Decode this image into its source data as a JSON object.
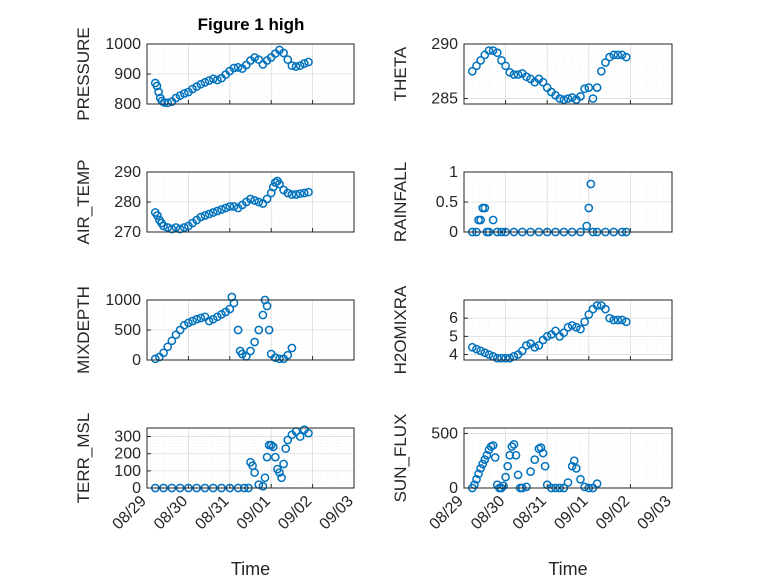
{
  "figure": {
    "title": "Figure 1 high"
  },
  "chart_data": [
    {
      "type": "scatter",
      "ylabel": "PRESSURE",
      "ylim": [
        800,
        1000
      ],
      "yticks": [
        800,
        900,
        1000
      ],
      "xlabel": "",
      "x_range": [
        "08/29",
        "09/03"
      ],
      "points": [
        [
          0.2,
          870
        ],
        [
          0.24,
          860
        ],
        [
          0.28,
          840
        ],
        [
          0.32,
          820
        ],
        [
          0.36,
          810
        ],
        [
          0.42,
          805
        ],
        [
          0.5,
          804
        ],
        [
          0.6,
          808
        ],
        [
          0.7,
          820
        ],
        [
          0.8,
          828
        ],
        [
          0.9,
          835
        ],
        [
          1.0,
          840
        ],
        [
          1.1,
          850
        ],
        [
          1.2,
          858
        ],
        [
          1.3,
          866
        ],
        [
          1.4,
          872
        ],
        [
          1.5,
          878
        ],
        [
          1.6,
          884
        ],
        [
          1.7,
          880
        ],
        [
          1.8,
          886
        ],
        [
          1.9,
          898
        ],
        [
          2.0,
          910
        ],
        [
          2.1,
          920
        ],
        [
          2.2,
          922
        ],
        [
          2.3,
          918
        ],
        [
          2.4,
          930
        ],
        [
          2.5,
          945
        ],
        [
          2.6,
          955
        ],
        [
          2.7,
          948
        ],
        [
          2.8,
          932
        ],
        [
          2.9,
          945
        ],
        [
          3.0,
          955
        ],
        [
          3.1,
          968
        ],
        [
          3.2,
          980
        ],
        [
          3.3,
          970
        ],
        [
          3.4,
          948
        ],
        [
          3.5,
          928
        ],
        [
          3.6,
          925
        ],
        [
          3.7,
          928
        ],
        [
          3.8,
          935
        ],
        [
          3.9,
          940
        ]
      ]
    },
    {
      "type": "scatter",
      "ylabel": "THETA",
      "ylim": [
        284.5,
        290
      ],
      "yticks": [
        285,
        290
      ],
      "xlabel": "",
      "x_range": [
        "08/29",
        "09/03"
      ],
      "points": [
        [
          0.2,
          287.5
        ],
        [
          0.3,
          288.0
        ],
        [
          0.4,
          288.5
        ],
        [
          0.5,
          289.0
        ],
        [
          0.6,
          289.4
        ],
        [
          0.7,
          289.4
        ],
        [
          0.8,
          289.2
        ],
        [
          0.9,
          288.5
        ],
        [
          1.0,
          288.0
        ],
        [
          1.1,
          287.4
        ],
        [
          1.2,
          287.2
        ],
        [
          1.3,
          287.2
        ],
        [
          1.4,
          287.3
        ],
        [
          1.5,
          287.0
        ],
        [
          1.6,
          286.8
        ],
        [
          1.7,
          286.5
        ],
        [
          1.8,
          286.8
        ],
        [
          1.9,
          286.5
        ],
        [
          2.0,
          286.0
        ],
        [
          2.1,
          285.6
        ],
        [
          2.2,
          285.3
        ],
        [
          2.3,
          285.0
        ],
        [
          2.4,
          284.9
        ],
        [
          2.5,
          285.0
        ],
        [
          2.6,
          285.1
        ],
        [
          2.7,
          284.9
        ],
        [
          2.8,
          285.2
        ],
        [
          2.9,
          285.9
        ],
        [
          3.0,
          286.0
        ],
        [
          3.1,
          285.0
        ],
        [
          3.2,
          286.0
        ],
        [
          3.3,
          287.5
        ],
        [
          3.4,
          288.3
        ],
        [
          3.5,
          288.8
        ],
        [
          3.6,
          289.0
        ],
        [
          3.7,
          289.0
        ],
        [
          3.8,
          289.0
        ],
        [
          3.9,
          288.8
        ]
      ]
    },
    {
      "type": "scatter",
      "ylabel": "AIR_TEMP",
      "ylim": [
        270,
        290
      ],
      "yticks": [
        270,
        280,
        290
      ],
      "xlabel": "",
      "x_range": [
        "08/29",
        "09/03"
      ],
      "points": [
        [
          0.2,
          276.5
        ],
        [
          0.25,
          275.5
        ],
        [
          0.3,
          274.0
        ],
        [
          0.35,
          273.0
        ],
        [
          0.4,
          272.0
        ],
        [
          0.5,
          271.5
        ],
        [
          0.6,
          271.0
        ],
        [
          0.7,
          271.5
        ],
        [
          0.8,
          271.0
        ],
        [
          0.9,
          271.5
        ],
        [
          1.0,
          272.0
        ],
        [
          1.1,
          273.0
        ],
        [
          1.2,
          274.0
        ],
        [
          1.3,
          275.0
        ],
        [
          1.4,
          275.5
        ],
        [
          1.5,
          276.0
        ],
        [
          1.6,
          276.5
        ],
        [
          1.7,
          277.0
        ],
        [
          1.8,
          277.5
        ],
        [
          1.9,
          278.0
        ],
        [
          2.0,
          278.5
        ],
        [
          2.1,
          278.5
        ],
        [
          2.2,
          278.0
        ],
        [
          2.3,
          279.0
        ],
        [
          2.4,
          280.0
        ],
        [
          2.5,
          281.0
        ],
        [
          2.6,
          280.5
        ],
        [
          2.7,
          280.0
        ],
        [
          2.8,
          279.5
        ],
        [
          2.9,
          281.0
        ],
        [
          3.0,
          283.0
        ],
        [
          3.05,
          285.0
        ],
        [
          3.1,
          286.5
        ],
        [
          3.15,
          287.0
        ],
        [
          3.2,
          286.0
        ],
        [
          3.3,
          284.0
        ],
        [
          3.4,
          283.0
        ],
        [
          3.5,
          282.5
        ],
        [
          3.6,
          282.5
        ],
        [
          3.7,
          282.8
        ],
        [
          3.8,
          283.0
        ],
        [
          3.9,
          283.3
        ]
      ]
    },
    {
      "type": "scatter",
      "ylabel": "RAINFALL",
      "ylim": [
        0,
        1
      ],
      "yticks": [
        0,
        0.5,
        1
      ],
      "xlabel": "",
      "x_range": [
        "08/29",
        "09/03"
      ],
      "points": [
        [
          0.2,
          0
        ],
        [
          0.3,
          0
        ],
        [
          0.35,
          0.2
        ],
        [
          0.4,
          0.2
        ],
        [
          0.45,
          0.4
        ],
        [
          0.5,
          0.4
        ],
        [
          0.55,
          0
        ],
        [
          0.6,
          0
        ],
        [
          0.7,
          0.2
        ],
        [
          0.8,
          0
        ],
        [
          0.9,
          0
        ],
        [
          1.0,
          0
        ],
        [
          1.2,
          0
        ],
        [
          1.4,
          0
        ],
        [
          1.6,
          0
        ],
        [
          1.8,
          0
        ],
        [
          2.0,
          0
        ],
        [
          2.2,
          0
        ],
        [
          2.4,
          0
        ],
        [
          2.6,
          0
        ],
        [
          2.8,
          0
        ],
        [
          2.95,
          0.1
        ],
        [
          3.0,
          0.4
        ],
        [
          3.05,
          0.8
        ],
        [
          3.1,
          0
        ],
        [
          3.2,
          0
        ],
        [
          3.4,
          0
        ],
        [
          3.6,
          0
        ],
        [
          3.8,
          0
        ],
        [
          3.9,
          0
        ]
      ]
    },
    {
      "type": "scatter",
      "ylabel": "MIXDEPTH",
      "ylim": [
        0,
        1000
      ],
      "yticks": [
        0,
        500,
        1000
      ],
      "xlabel": "",
      "x_range": [
        "08/29",
        "09/03"
      ],
      "points": [
        [
          0.2,
          20
        ],
        [
          0.3,
          50
        ],
        [
          0.4,
          120
        ],
        [
          0.5,
          220
        ],
        [
          0.6,
          320
        ],
        [
          0.7,
          420
        ],
        [
          0.8,
          500
        ],
        [
          0.9,
          580
        ],
        [
          1.0,
          620
        ],
        [
          1.1,
          650
        ],
        [
          1.2,
          680
        ],
        [
          1.3,
          700
        ],
        [
          1.4,
          720
        ],
        [
          1.5,
          650
        ],
        [
          1.6,
          680
        ],
        [
          1.7,
          720
        ],
        [
          1.8,
          760
        ],
        [
          1.9,
          800
        ],
        [
          2.0,
          850
        ],
        [
          2.05,
          1050
        ],
        [
          2.1,
          950
        ],
        [
          2.2,
          500
        ],
        [
          2.25,
          150
        ],
        [
          2.3,
          100
        ],
        [
          2.4,
          60
        ],
        [
          2.5,
          150
        ],
        [
          2.6,
          300
        ],
        [
          2.7,
          500
        ],
        [
          2.8,
          750
        ],
        [
          2.85,
          1000
        ],
        [
          2.9,
          900
        ],
        [
          2.95,
          500
        ],
        [
          3.0,
          100
        ],
        [
          3.1,
          40
        ],
        [
          3.2,
          20
        ],
        [
          3.3,
          20
        ],
        [
          3.4,
          80
        ],
        [
          3.5,
          200
        ]
      ]
    },
    {
      "type": "scatter",
      "ylabel": "H2OMIXRA",
      "ylim": [
        3.7,
        7
      ],
      "yticks": [
        4,
        5,
        6
      ],
      "xlabel": "",
      "x_range": [
        "08/29",
        "09/03"
      ],
      "points": [
        [
          0.2,
          4.4
        ],
        [
          0.3,
          4.3
        ],
        [
          0.4,
          4.2
        ],
        [
          0.5,
          4.1
        ],
        [
          0.6,
          4.0
        ],
        [
          0.7,
          3.9
        ],
        [
          0.8,
          3.8
        ],
        [
          0.9,
          3.8
        ],
        [
          1.0,
          3.8
        ],
        [
          1.1,
          3.8
        ],
        [
          1.2,
          3.9
        ],
        [
          1.3,
          4.0
        ],
        [
          1.4,
          4.2
        ],
        [
          1.5,
          4.5
        ],
        [
          1.6,
          4.6
        ],
        [
          1.7,
          4.4
        ],
        [
          1.8,
          4.5
        ],
        [
          1.9,
          4.8
        ],
        [
          2.0,
          5.0
        ],
        [
          2.1,
          5.1
        ],
        [
          2.2,
          5.3
        ],
        [
          2.3,
          5.0
        ],
        [
          2.4,
          5.2
        ],
        [
          2.5,
          5.5
        ],
        [
          2.6,
          5.6
        ],
        [
          2.7,
          5.5
        ],
        [
          2.8,
          5.4
        ],
        [
          2.9,
          5.8
        ],
        [
          3.0,
          6.2
        ],
        [
          3.1,
          6.5
        ],
        [
          3.2,
          6.7
        ],
        [
          3.3,
          6.7
        ],
        [
          3.4,
          6.5
        ],
        [
          3.5,
          6.0
        ],
        [
          3.6,
          5.9
        ],
        [
          3.7,
          5.9
        ],
        [
          3.8,
          5.9
        ],
        [
          3.9,
          5.8
        ]
      ]
    },
    {
      "type": "scatter",
      "ylabel": "TERR_MSL",
      "ylim": [
        0,
        350
      ],
      "yticks": [
        0,
        100,
        200,
        300
      ],
      "xlabel": "Time",
      "x_range": [
        "08/29",
        "09/03"
      ],
      "xticks": [
        "08/29",
        "08/30",
        "08/31",
        "09/01",
        "09/02",
        "09/03"
      ],
      "points": [
        [
          0.2,
          0
        ],
        [
          0.4,
          0
        ],
        [
          0.6,
          0
        ],
        [
          0.8,
          0
        ],
        [
          1.0,
          0
        ],
        [
          1.2,
          0
        ],
        [
          1.4,
          0
        ],
        [
          1.6,
          0
        ],
        [
          1.8,
          0
        ],
        [
          2.0,
          0
        ],
        [
          2.2,
          0
        ],
        [
          2.35,
          0
        ],
        [
          2.45,
          0
        ],
        [
          2.5,
          150
        ],
        [
          2.55,
          130
        ],
        [
          2.6,
          90
        ],
        [
          2.7,
          20
        ],
        [
          2.8,
          10
        ],
        [
          2.85,
          60
        ],
        [
          2.9,
          180
        ],
        [
          2.95,
          250
        ],
        [
          3.0,
          250
        ],
        [
          3.05,
          240
        ],
        [
          3.1,
          180
        ],
        [
          3.15,
          110
        ],
        [
          3.2,
          90
        ],
        [
          3.25,
          60
        ],
        [
          3.3,
          140
        ],
        [
          3.35,
          230
        ],
        [
          3.4,
          280
        ],
        [
          3.5,
          310
        ],
        [
          3.6,
          330
        ],
        [
          3.7,
          300
        ],
        [
          3.8,
          340
        ],
        [
          3.9,
          320
        ]
      ]
    },
    {
      "type": "scatter",
      "ylabel": "SUN_FLUX",
      "ylim": [
        0,
        550
      ],
      "yticks": [
        0,
        500
      ],
      "xlabel": "Time",
      "x_range": [
        "08/29",
        "09/03"
      ],
      "xticks": [
        "08/29",
        "08/30",
        "08/31",
        "09/01",
        "09/02",
        "09/03"
      ],
      "points": [
        [
          0.2,
          0
        ],
        [
          0.25,
          30
        ],
        [
          0.3,
          80
        ],
        [
          0.35,
          130
        ],
        [
          0.4,
          180
        ],
        [
          0.45,
          220
        ],
        [
          0.5,
          260
        ],
        [
          0.55,
          300
        ],
        [
          0.6,
          350
        ],
        [
          0.65,
          380
        ],
        [
          0.7,
          390
        ],
        [
          0.75,
          280
        ],
        [
          0.8,
          30
        ],
        [
          0.85,
          0
        ],
        [
          0.9,
          0
        ],
        [
          0.95,
          20
        ],
        [
          1.0,
          100
        ],
        [
          1.05,
          200
        ],
        [
          1.1,
          300
        ],
        [
          1.15,
          380
        ],
        [
          1.2,
          400
        ],
        [
          1.25,
          300
        ],
        [
          1.3,
          120
        ],
        [
          1.35,
          0
        ],
        [
          1.4,
          0
        ],
        [
          1.5,
          10
        ],
        [
          1.6,
          150
        ],
        [
          1.7,
          260
        ],
        [
          1.8,
          360
        ],
        [
          1.85,
          370
        ],
        [
          1.9,
          320
        ],
        [
          1.95,
          200
        ],
        [
          2.0,
          30
        ],
        [
          2.1,
          0
        ],
        [
          2.2,
          0
        ],
        [
          2.3,
          0
        ],
        [
          2.4,
          0
        ],
        [
          2.5,
          50
        ],
        [
          2.6,
          200
        ],
        [
          2.65,
          250
        ],
        [
          2.7,
          180
        ],
        [
          2.8,
          80
        ],
        [
          2.9,
          10
        ],
        [
          3.0,
          0
        ],
        [
          3.1,
          0
        ],
        [
          3.2,
          40
        ]
      ]
    }
  ]
}
